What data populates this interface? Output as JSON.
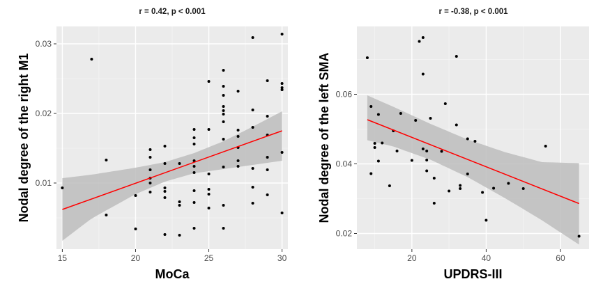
{
  "chart_data": [
    {
      "type": "scatter",
      "title": "r = 0.42, p < 0.001",
      "xlabel": "MoCa",
      "ylabel": "Nodal degree of the right M1",
      "xlim": [
        14.6,
        30.4
      ],
      "ylim": [
        0.0005,
        0.0325
      ],
      "xticks": [
        15,
        20,
        25,
        30
      ],
      "yticks": [
        0.01,
        0.02,
        0.03
      ],
      "xtick_labels": [
        "15",
        "20",
        "25",
        "30"
      ],
      "ytick_labels": [
        "0.01",
        "0.02",
        "0.03"
      ],
      "background": "#ebebeb",
      "grid": true,
      "grid_color": "#ffffff",
      "point_color": "#000000",
      "fit_color": "#ff0000",
      "band_color": "#bdbdbd",
      "points": [
        [
          15,
          0.0093
        ],
        [
          17,
          0.0278
        ],
        [
          18,
          0.0133
        ],
        [
          18,
          0.0054
        ],
        [
          20,
          0.0082
        ],
        [
          20,
          0.0034
        ],
        [
          21,
          0.0148
        ],
        [
          21,
          0.0137
        ],
        [
          21,
          0.0119
        ],
        [
          21,
          0.0107
        ],
        [
          21,
          0.01
        ],
        [
          21,
          0.0087
        ],
        [
          22,
          0.0153
        ],
        [
          22,
          0.0128
        ],
        [
          22,
          0.0093
        ],
        [
          22,
          0.0088
        ],
        [
          22,
          0.0079
        ],
        [
          22,
          0.0026
        ],
        [
          23,
          0.0128
        ],
        [
          23,
          0.0073
        ],
        [
          23,
          0.0068
        ],
        [
          23,
          0.0025
        ],
        [
          24,
          0.0177
        ],
        [
          24,
          0.0165
        ],
        [
          24,
          0.0156
        ],
        [
          24,
          0.0132
        ],
        [
          24,
          0.0124
        ],
        [
          24,
          0.0115
        ],
        [
          24,
          0.0089
        ],
        [
          24,
          0.0072
        ],
        [
          24,
          0.0035
        ],
        [
          25,
          0.0246
        ],
        [
          25,
          0.0177
        ],
        [
          25,
          0.0113
        ],
        [
          25,
          0.0091
        ],
        [
          25,
          0.0084
        ],
        [
          25,
          0.0064
        ],
        [
          26,
          0.0262
        ],
        [
          26,
          0.0239
        ],
        [
          26,
          0.0226
        ],
        [
          26,
          0.021
        ],
        [
          26,
          0.0204
        ],
        [
          26,
          0.0199
        ],
        [
          26,
          0.0188
        ],
        [
          26,
          0.0163
        ],
        [
          26,
          0.0123
        ],
        [
          26,
          0.0068
        ],
        [
          26,
          0.0035
        ],
        [
          27,
          0.0232
        ],
        [
          27,
          0.0176
        ],
        [
          27,
          0.0167
        ],
        [
          27,
          0.0151
        ],
        [
          27,
          0.0132
        ],
        [
          27,
          0.0124
        ],
        [
          28,
          0.0309
        ],
        [
          28,
          0.0205
        ],
        [
          28,
          0.018
        ],
        [
          28,
          0.0121
        ],
        [
          28,
          0.0094
        ],
        [
          28,
          0.0071
        ],
        [
          29,
          0.0247
        ],
        [
          29,
          0.0196
        ],
        [
          29,
          0.0169
        ],
        [
          29,
          0.0137
        ],
        [
          29,
          0.0119
        ],
        [
          29,
          0.0083
        ],
        [
          30,
          0.0314
        ],
        [
          30,
          0.0243
        ],
        [
          30,
          0.0237
        ],
        [
          30,
          0.0234
        ],
        [
          30,
          0.0144
        ],
        [
          30,
          0.0057
        ]
      ],
      "fit_line": {
        "x": [
          15,
          30
        ],
        "y": [
          0.0062,
          0.0175
        ]
      },
      "ci_band": {
        "x": [
          15,
          17,
          20,
          22,
          24,
          26,
          28,
          30
        ],
        "lower": [
          0.0017,
          0.0049,
          0.0084,
          0.0102,
          0.0114,
          0.012,
          0.0126,
          0.0132
        ],
        "upper": [
          0.0107,
          0.0112,
          0.0122,
          0.013,
          0.0143,
          0.016,
          0.0181,
          0.0203
        ]
      }
    },
    {
      "type": "scatter",
      "title": "r = -0.38, p < 0.001",
      "xlabel": "UPDRS-III",
      "ylabel": "Nodal degree of the left SMA",
      "xlim": [
        5.2,
        67.7
      ],
      "ylim": [
        0.0155,
        0.0795
      ],
      "xticks": [
        20,
        40,
        60
      ],
      "yticks": [
        0.02,
        0.04,
        0.06
      ],
      "xtick_labels": [
        "20",
        "40",
        "60"
      ],
      "ytick_labels": [
        "0.02",
        "0.04",
        "0.06"
      ],
      "background": "#ebebeb",
      "grid": true,
      "grid_color": "#ffffff",
      "point_color": "#000000",
      "fit_color": "#ff0000",
      "band_color": "#bdbdbd",
      "points": [
        [
          8,
          0.0705
        ],
        [
          9,
          0.0565
        ],
        [
          9,
          0.0372
        ],
        [
          10,
          0.0459
        ],
        [
          10,
          0.0447
        ],
        [
          11,
          0.0542
        ],
        [
          11,
          0.0408
        ],
        [
          12,
          0.046
        ],
        [
          14,
          0.0337
        ],
        [
          15,
          0.0495
        ],
        [
          16,
          0.0437
        ],
        [
          17,
          0.0545
        ],
        [
          20,
          0.041
        ],
        [
          21,
          0.0525
        ],
        [
          22,
          0.0752
        ],
        [
          23,
          0.0763
        ],
        [
          23,
          0.0658
        ],
        [
          23,
          0.0443
        ],
        [
          24,
          0.0437
        ],
        [
          24,
          0.0411
        ],
        [
          24,
          0.038
        ],
        [
          25,
          0.0531
        ],
        [
          26,
          0.0359
        ],
        [
          26,
          0.0287
        ],
        [
          28,
          0.0436
        ],
        [
          29,
          0.0573
        ],
        [
          30,
          0.0322
        ],
        [
          32,
          0.0709
        ],
        [
          32,
          0.0512
        ],
        [
          33,
          0.0338
        ],
        [
          33,
          0.0329
        ],
        [
          35,
          0.0472
        ],
        [
          35,
          0.0371
        ],
        [
          37,
          0.0465
        ],
        [
          39,
          0.0318
        ],
        [
          40,
          0.0238
        ],
        [
          42,
          0.033
        ],
        [
          46,
          0.0344
        ],
        [
          50,
          0.0329
        ],
        [
          56,
          0.0451
        ],
        [
          65,
          0.0192
        ]
      ],
      "fit_line": {
        "x": [
          8,
          65
        ],
        "y": [
          0.0527,
          0.0286
        ]
      },
      "ci_band": {
        "x": [
          8,
          15,
          25,
          35,
          45,
          55,
          65
        ],
        "lower": [
          0.0468,
          0.045,
          0.0412,
          0.0362,
          0.0302,
          0.0238,
          0.0168
        ],
        "upper": [
          0.0597,
          0.0564,
          0.0515,
          0.047,
          0.0434,
          0.0405,
          0.0402
        ]
      }
    }
  ]
}
